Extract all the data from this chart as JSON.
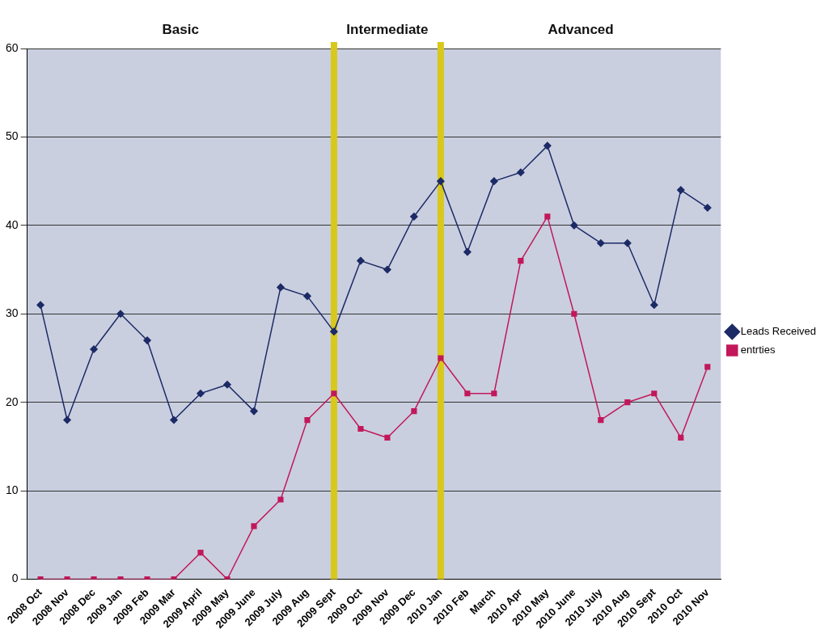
{
  "chart_data": {
    "type": "line",
    "categories": [
      "2008 Oct",
      "2008 Nov",
      "2008 Dec",
      "2009 Jan",
      "2009 Feb",
      "2009 Mar",
      "2009 April",
      "2009 May",
      "2009 June",
      "2009 July",
      "2009 Aug",
      "2009 Sept",
      "2009 Oct",
      "2009 Nov",
      "2009 Dec",
      "2010 Jan",
      "2010 Feb",
      "March",
      "2010 Apr",
      "2010 May",
      "2010 June",
      "2010 July",
      "2010 Aug",
      "2010 Sept",
      "2010 Oct",
      "2010 Nov"
    ],
    "series": [
      {
        "name": "Leads Received",
        "color": "#1c2a66",
        "marker": "diamond",
        "values": [
          31,
          18,
          26,
          30,
          27,
          18,
          21,
          22,
          19,
          33,
          32,
          28,
          36,
          35,
          41,
          45,
          37,
          45,
          46,
          49,
          40,
          38,
          38,
          31,
          44,
          42
        ]
      },
      {
        "name": "entrties",
        "color": "#c2185b",
        "marker": "square",
        "values": [
          0,
          0,
          0,
          0,
          0,
          0,
          3,
          0,
          6,
          9,
          18,
          21,
          17,
          16,
          19,
          25,
          21,
          21,
          36,
          41,
          30,
          18,
          20,
          21,
          16,
          24
        ]
      }
    ],
    "ylim": [
      0,
      60
    ],
    "yticks": [
      0,
      10,
      20,
      30,
      40,
      50,
      60
    ],
    "grid": "y",
    "legend": "right",
    "ref_lines": [
      {
        "axis": "x",
        "value": "2009 Sept",
        "color": "#d8c81c"
      },
      {
        "axis": "x",
        "value": "2010 Jan",
        "color": "#d8c81c"
      }
    ],
    "annotations": [
      "Basic",
      "Intermediate",
      "Advanced"
    ]
  }
}
